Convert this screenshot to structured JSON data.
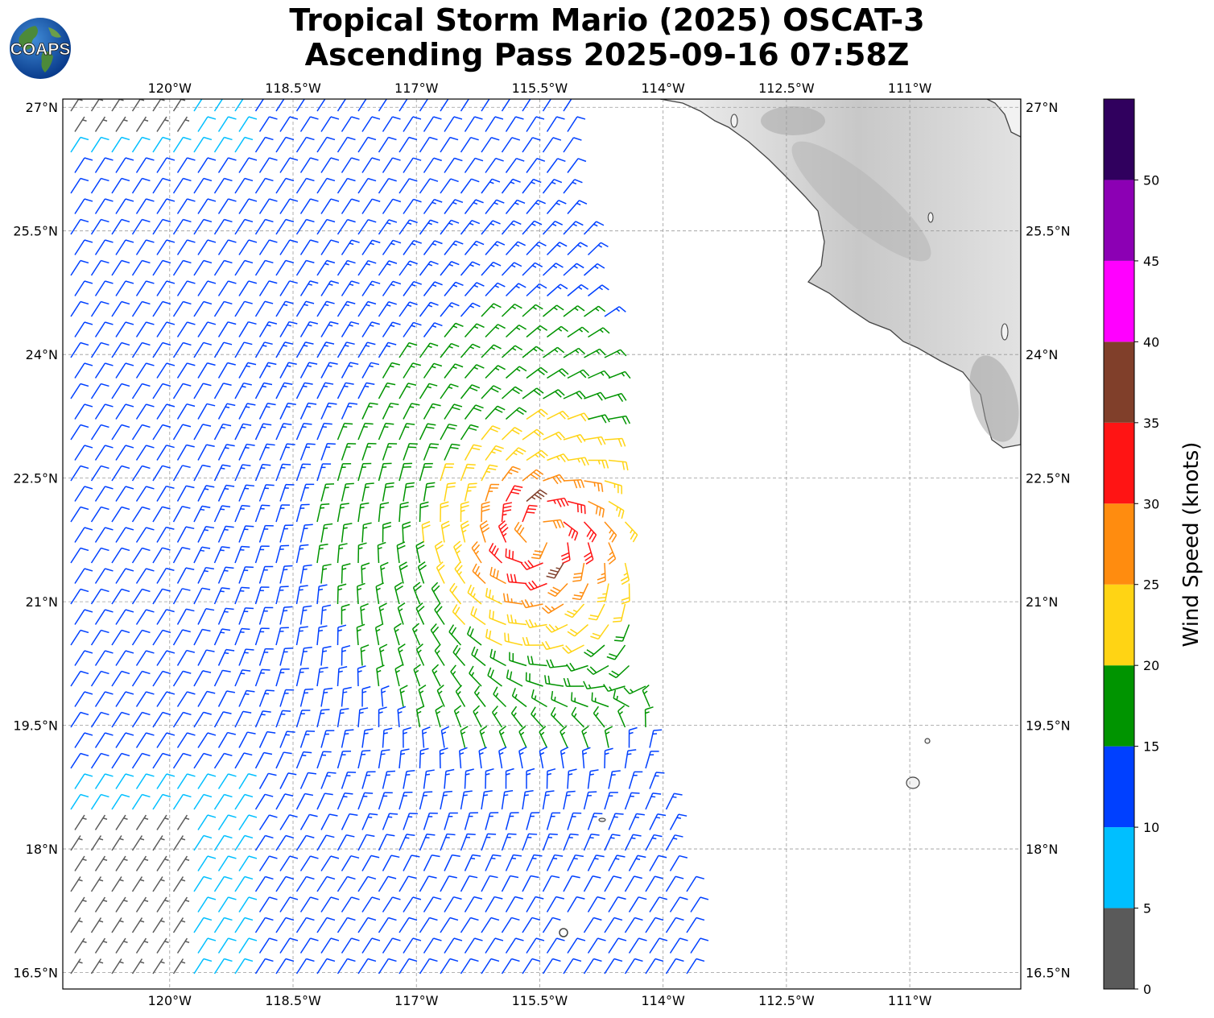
{
  "title": {
    "line1": "Tropical Storm Mario (2025) OSCAT-3",
    "line2": "Ascending Pass 2025-09-16 07:58Z"
  },
  "logo": {
    "text": "COAPS",
    "icon": "globe-logo-icon"
  },
  "map": {
    "lon_range": [
      -121.3,
      -109.65
    ],
    "lat_range": [
      16.3,
      27.1
    ],
    "lon_ticks": [
      "120°W",
      "118.5°W",
      "117°W",
      "115.5°W",
      "114°W",
      "112.5°W",
      "111°W"
    ],
    "lon_tick_values": [
      -120,
      -118.5,
      -117,
      -115.5,
      -114,
      -112.5,
      -111
    ],
    "lat_ticks": [
      "16.5°N",
      "18°N",
      "19.5°N",
      "21°N",
      "22.5°N",
      "24°N",
      "25.5°N",
      "27°N"
    ],
    "lat_tick_values": [
      16.5,
      18,
      19.5,
      21,
      22.5,
      24,
      25.5,
      27
    ],
    "grid": true,
    "storm_center": {
      "lon": -115.5,
      "lat": 21.8
    }
  },
  "colorbar": {
    "label": "Wind Speed (knots)",
    "ticks": [
      "0",
      "5",
      "10",
      "15",
      "20",
      "25",
      "30",
      "35",
      "40",
      "45",
      "50"
    ],
    "bins": [
      {
        "min": 0,
        "max": 5,
        "color": "#5a5a5a"
      },
      {
        "min": 5,
        "max": 10,
        "color": "#00bfff"
      },
      {
        "min": 10,
        "max": 15,
        "color": "#0040ff"
      },
      {
        "min": 15,
        "max": 20,
        "color": "#009400"
      },
      {
        "min": 20,
        "max": 25,
        "color": "#ffd414"
      },
      {
        "min": 25,
        "max": 30,
        "color": "#ff8c0f"
      },
      {
        "min": 30,
        "max": 35,
        "color": "#ff1414"
      },
      {
        "min": 35,
        "max": 40,
        "color": "#803f2a"
      },
      {
        "min": 40,
        "max": 45,
        "color": "#ff00ff"
      },
      {
        "min": 45,
        "max": 50,
        "color": "#8c00b4"
      },
      {
        "min": 50,
        "max": 55,
        "color": "#30005e"
      }
    ]
  }
}
